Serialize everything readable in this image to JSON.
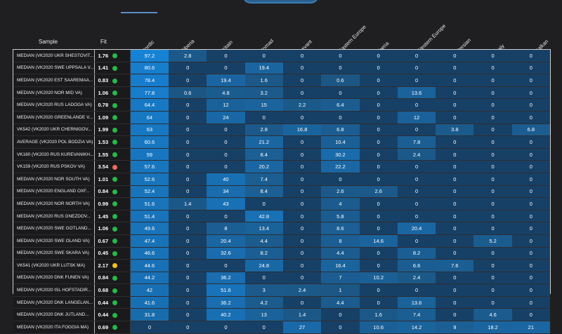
{
  "header": {
    "sample_label": "Sample",
    "fit_label": "Fit"
  },
  "columns": [
    "Nordic",
    "Siberia",
    "Britain",
    "Nomad",
    "Levant",
    "Eastern Europe",
    "Iberia",
    "Western Europe",
    "Persian",
    "Italy",
    "Balkan"
  ],
  "colors": {
    "dot_green": "#27b84a",
    "dot_red": "#ef6a5b",
    "dot_yellow": "#f1c21b",
    "bg": "#1f1f22"
  },
  "rows": [
    {
      "name": "MEDIAN (VK2020 UKR SHESTOVIT...",
      "fit": "1.76",
      "status": "green",
      "values": [
        "97.2",
        "2.8",
        "0",
        "0",
        "0",
        "0",
        "0",
        "0",
        "0",
        "0",
        "0"
      ]
    },
    {
      "name": "MEDIAN (VK2020 SWE UPPSALA V...",
      "fit": "1.41",
      "status": "green",
      "values": [
        "80.6",
        "0",
        "0",
        "19.4",
        "0",
        "0",
        "0",
        "0",
        "0",
        "0",
        "0"
      ]
    },
    {
      "name": "MEDIAN (VK2020 EST SAAREMAA...",
      "fit": "0.83",
      "status": "green",
      "values": [
        "78.4",
        "0",
        "19.4",
        "1.6",
        "0",
        "0.6",
        "0",
        "0",
        "0",
        "0",
        "0"
      ]
    },
    {
      "name": "MEDIAN (VK2020 NOR MID VA)",
      "fit": "1.06",
      "status": "green",
      "values": [
        "77.8",
        "0.6",
        "4.8",
        "3.2",
        "0",
        "0",
        "0",
        "13.6",
        "0",
        "0",
        "0"
      ]
    },
    {
      "name": "MEDIAN (VK2020 RUS LADOGA VA)",
      "fit": "0.78",
      "status": "green",
      "values": [
        "64.4",
        "0",
        "12",
        "15",
        "2.2",
        "6.4",
        "0",
        "0",
        "0",
        "0",
        "0"
      ]
    },
    {
      "name": "MEDIAN (VK2020 GREENLANDE V...",
      "fit": "1.09",
      "status": "green",
      "values": [
        "64",
        "0",
        "24",
        "0",
        "0",
        "0",
        "0",
        "12",
        "0",
        "0",
        "0"
      ]
    },
    {
      "name": "VK542 (VK2020 UKR CHERNIGOV...",
      "fit": "1.99",
      "status": "green",
      "values": [
        "63",
        "0",
        "0",
        "2.8",
        "16.8",
        "6.8",
        "0",
        "0",
        "3.8",
        "0",
        "6.8"
      ]
    },
    {
      "name": "AVERAGE (VK2020 POL BODZIA VA)",
      "fit": "1.53",
      "status": "green",
      "values": [
        "60.6",
        "0",
        "0",
        "21.2",
        "0",
        "10.4",
        "0",
        "7.8",
        "0",
        "0",
        "0"
      ]
    },
    {
      "name": "VK160 (VK2020 RUS KUREVANIKH...",
      "fit": "1.55",
      "status": "green",
      "values": [
        "59",
        "0",
        "0",
        "8.4",
        "0",
        "30.2",
        "0",
        "2.4",
        "0",
        "0",
        "0"
      ]
    },
    {
      "name": "VK159 (VK2020 RUS PSKOV VA)",
      "fit": "3.54",
      "status": "red",
      "values": [
        "57.6",
        "0",
        "0",
        "20.2",
        "0",
        "22.2",
        "0",
        "0",
        "0",
        "0",
        "0"
      ]
    },
    {
      "name": "MEDIAN (VK2020 NOR SOUTH VA)",
      "fit": "1.01",
      "status": "green",
      "values": [
        "52.6",
        "0",
        "40",
        "7.4",
        "0",
        "0",
        "0",
        "0",
        "0",
        "0",
        "0"
      ]
    },
    {
      "name": "MEDIAN (VK2020 ENGLAND OXF...",
      "fit": "0.84",
      "status": "green",
      "values": [
        "52.4",
        "0",
        "34",
        "8.4",
        "0",
        "2.6",
        "2.6",
        "0",
        "0",
        "0",
        "0"
      ]
    },
    {
      "name": "MEDIAN (VK2020 NOR NORTH VA)",
      "fit": "0.99",
      "status": "green",
      "values": [
        "51.6",
        "1.4",
        "43",
        "0",
        "0",
        "4",
        "0",
        "0",
        "0",
        "0",
        "0"
      ]
    },
    {
      "name": "MEDIAN (VK2020 RUS GNEZDOV...",
      "fit": "1.45",
      "status": "green",
      "values": [
        "51.4",
        "0",
        "0",
        "42.8",
        "0",
        "5.8",
        "0",
        "0",
        "0",
        "0",
        "0"
      ]
    },
    {
      "name": "MEDIAN (VK2020 SWE GOTLAND...",
      "fit": "1.06",
      "status": "green",
      "values": [
        "49.6",
        "0",
        "8",
        "13.4",
        "0",
        "8.6",
        "0",
        "20.4",
        "0",
        "0",
        "0"
      ]
    },
    {
      "name": "MEDIAN (VK2020 SWE OLAND VA)",
      "fit": "0.67",
      "status": "green",
      "values": [
        "47.4",
        "0",
        "20.4",
        "4.4",
        "0",
        "8",
        "14.6",
        "0",
        "0",
        "5.2",
        "0"
      ]
    },
    {
      "name": "MEDIAN (VK2020 SWE SKARA VA)",
      "fit": "0.45",
      "status": "green",
      "values": [
        "46.6",
        "0",
        "32.6",
        "8.2",
        "0",
        "4.4",
        "0",
        "8.2",
        "0",
        "0",
        "0"
      ]
    },
    {
      "name": "VK541 (VK2020 UKR LUTSK MA)",
      "fit": "2.17",
      "status": "yellow",
      "values": [
        "44.6",
        "0",
        "0",
        "24.8",
        "0",
        "16.4",
        "0",
        "6.6",
        "7.6",
        "0",
        "0"
      ]
    },
    {
      "name": "MEDIAN (VK2020 DNK FUNEN VA)",
      "fit": "0.84",
      "status": "green",
      "values": [
        "44.2",
        "0",
        "36.2",
        "0",
        "0",
        "7",
        "10.2",
        "2.4",
        "0",
        "0",
        "0"
      ]
    },
    {
      "name": "MEDIAN (VK2020 ISL HOFSTADIR...",
      "fit": "0.68",
      "status": "green",
      "values": [
        "42",
        "0",
        "51.6",
        "3",
        "2.4",
        "1",
        "0",
        "0",
        "0",
        "0",
        "0"
      ]
    },
    {
      "name": "MEDIAN (VK2020 DNK LANGELAN...",
      "fit": "0.44",
      "status": "green",
      "values": [
        "41.6",
        "0",
        "36.2",
        "4.2",
        "0",
        "4.4",
        "0",
        "13.6",
        "0",
        "0",
        "0"
      ]
    },
    {
      "name": "MEDIAN (VK2020 DNK JUTLAND...",
      "fit": "0.44",
      "status": "green",
      "values": [
        "31.8",
        "0",
        "40.2",
        "13",
        "1.4",
        "0",
        "1.6",
        "7.4",
        "0",
        "4.6",
        "0"
      ]
    },
    {
      "name": "MEDIAN (VK2020 ITA FOGGIA MA)",
      "fit": "0.69",
      "status": "green",
      "values": [
        "0",
        "0",
        "0",
        "0",
        "27",
        "0",
        "10.6",
        "14.2",
        "9",
        "18.2",
        "21"
      ]
    }
  ]
}
